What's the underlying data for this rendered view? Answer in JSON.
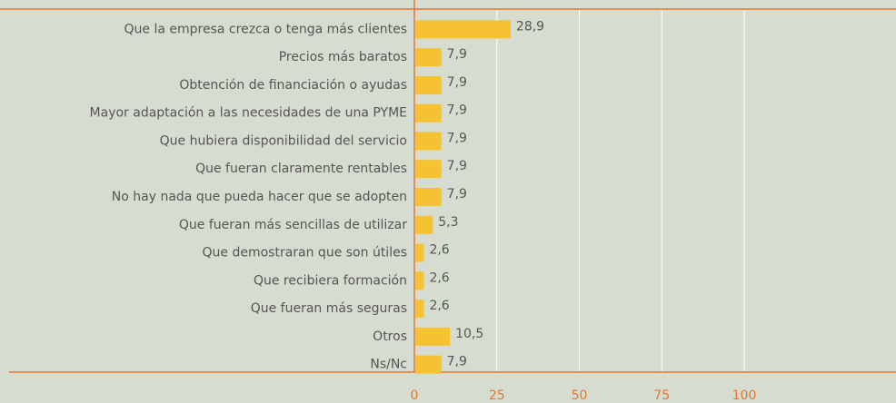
{
  "chart_data": {
    "type": "bar",
    "orientation": "horizontal",
    "categories": [
      "Que la empresa crezca o tenga más clientes",
      "Precios más baratos",
      "Obtención de financiación o ayudas",
      "Mayor adaptación a las necesidades de una PYME",
      "Que hubiera disponibilidad del servicio",
      "Que fueran claramente rentables",
      "No hay nada que pueda hacer que se adopten",
      "Que fueran más sencillas de utilizar",
      "Que demostraran que son útiles",
      "Que recibiera formación",
      "Que fueran más seguras",
      "Otros",
      "Ns/Nc"
    ],
    "values": [
      28.9,
      7.9,
      7.9,
      7.9,
      7.9,
      7.9,
      7.9,
      5.3,
      2.6,
      2.6,
      2.6,
      10.5,
      7.9
    ],
    "value_labels": [
      "28,9",
      "7,9",
      "7,9",
      "7,9",
      "7,9",
      "7,9",
      "7,9",
      "5,3",
      "2,6",
      "2,6",
      "2,6",
      "10,5",
      "7,9"
    ],
    "color": "#f5c232",
    "xlim": [
      0,
      146
    ],
    "xticks": [
      0,
      25,
      50,
      75,
      100
    ],
    "grid": true
  }
}
